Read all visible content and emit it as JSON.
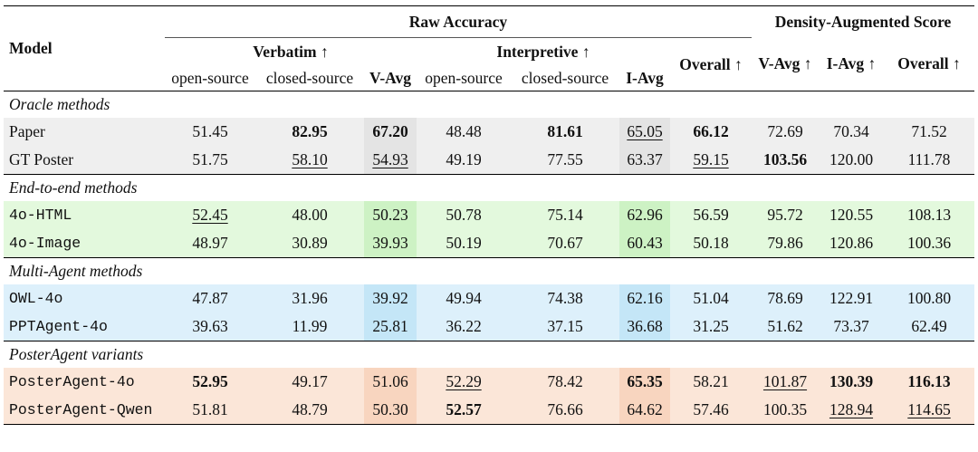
{
  "header": {
    "model_label": "Model",
    "raw_accuracy": "Raw Accuracy",
    "density_score": "Density-Augmented Score",
    "verbatim": "Verbatim ↑",
    "interpretive": "Interpretive ↑",
    "open_source": "open-source",
    "closed_source": "closed-source",
    "v_avg": "V-Avg",
    "i_avg": "I-Avg",
    "overall": "Overall ↑",
    "d_v_avg": "V-Avg ↑",
    "d_i_avg": "I-Avg ↑",
    "d_overall": "Overall ↑"
  },
  "sections": [
    {
      "title": "Oracle methods",
      "theme": "gray",
      "rows": [
        {
          "model": "Paper",
          "mono": false,
          "cells": [
            {
              "v": "51.45"
            },
            {
              "v": "82.95",
              "b": true
            },
            {
              "v": "67.20",
              "b": true
            },
            {
              "v": "48.48"
            },
            {
              "v": "81.61",
              "b": true
            },
            {
              "v": "65.05",
              "u": true
            },
            {
              "v": "66.12",
              "b": true
            },
            {
              "v": "72.69"
            },
            {
              "v": "70.34"
            },
            {
              "v": "71.52"
            }
          ]
        },
        {
          "model": "GT Poster",
          "mono": false,
          "cells": [
            {
              "v": "51.75"
            },
            {
              "v": "58.10",
              "u": true
            },
            {
              "v": "54.93",
              "u": true
            },
            {
              "v": "49.19"
            },
            {
              "v": "77.55"
            },
            {
              "v": "63.37"
            },
            {
              "v": "59.15",
              "u": true
            },
            {
              "v": "103.56",
              "b": true
            },
            {
              "v": "120.00"
            },
            {
              "v": "111.78"
            }
          ]
        }
      ]
    },
    {
      "title": "End-to-end methods",
      "theme": "green",
      "rows": [
        {
          "model": "4o-HTML",
          "mono": true,
          "cells": [
            {
              "v": "52.45",
              "u": true
            },
            {
              "v": "48.00"
            },
            {
              "v": "50.23"
            },
            {
              "v": "50.78"
            },
            {
              "v": "75.14"
            },
            {
              "v": "62.96"
            },
            {
              "v": "56.59"
            },
            {
              "v": "95.72"
            },
            {
              "v": "120.55"
            },
            {
              "v": "108.13"
            }
          ]
        },
        {
          "model": "4o-Image",
          "mono": true,
          "cells": [
            {
              "v": "48.97"
            },
            {
              "v": "30.89"
            },
            {
              "v": "39.93"
            },
            {
              "v": "50.19"
            },
            {
              "v": "70.67"
            },
            {
              "v": "60.43"
            },
            {
              "v": "50.18"
            },
            {
              "v": "79.86"
            },
            {
              "v": "120.86"
            },
            {
              "v": "100.36"
            }
          ]
        }
      ]
    },
    {
      "title": "Multi-Agent methods",
      "theme": "blue",
      "rows": [
        {
          "model": "OWL-4o",
          "mono": true,
          "cells": [
            {
              "v": "47.87"
            },
            {
              "v": "31.96"
            },
            {
              "v": "39.92"
            },
            {
              "v": "49.94"
            },
            {
              "v": "74.38"
            },
            {
              "v": "62.16"
            },
            {
              "v": "51.04"
            },
            {
              "v": "78.69"
            },
            {
              "v": "122.91"
            },
            {
              "v": "100.80"
            }
          ]
        },
        {
          "model": "PPTAgent-4o",
          "mono": true,
          "cells": [
            {
              "v": "39.63"
            },
            {
              "v": "11.99"
            },
            {
              "v": "25.81"
            },
            {
              "v": "36.22"
            },
            {
              "v": "37.15"
            },
            {
              "v": "36.68"
            },
            {
              "v": "31.25"
            },
            {
              "v": "51.62"
            },
            {
              "v": "73.37"
            },
            {
              "v": "62.49"
            }
          ]
        }
      ]
    },
    {
      "title": "PosterAgent variants",
      "theme": "orange",
      "rows": [
        {
          "model": "PosterAgent-4o",
          "mono": true,
          "cells": [
            {
              "v": "52.95",
              "b": true
            },
            {
              "v": "49.17"
            },
            {
              "v": "51.06"
            },
            {
              "v": "52.29",
              "u": true
            },
            {
              "v": "78.42"
            },
            {
              "v": "65.35",
              "b": true
            },
            {
              "v": "58.21"
            },
            {
              "v": "101.87",
              "u": true
            },
            {
              "v": "130.39",
              "b": true
            },
            {
              "v": "116.13",
              "b": true
            }
          ]
        },
        {
          "model": "PosterAgent-Qwen",
          "mono": true,
          "cells": [
            {
              "v": "51.81"
            },
            {
              "v": "48.79"
            },
            {
              "v": "50.30"
            },
            {
              "v": "52.57",
              "b": true
            },
            {
              "v": "76.66"
            },
            {
              "v": "64.62"
            },
            {
              "v": "57.46"
            },
            {
              "v": "100.35"
            },
            {
              "v": "128.94",
              "u": true
            },
            {
              "v": "114.65",
              "u": true
            }
          ]
        }
      ]
    }
  ]
}
